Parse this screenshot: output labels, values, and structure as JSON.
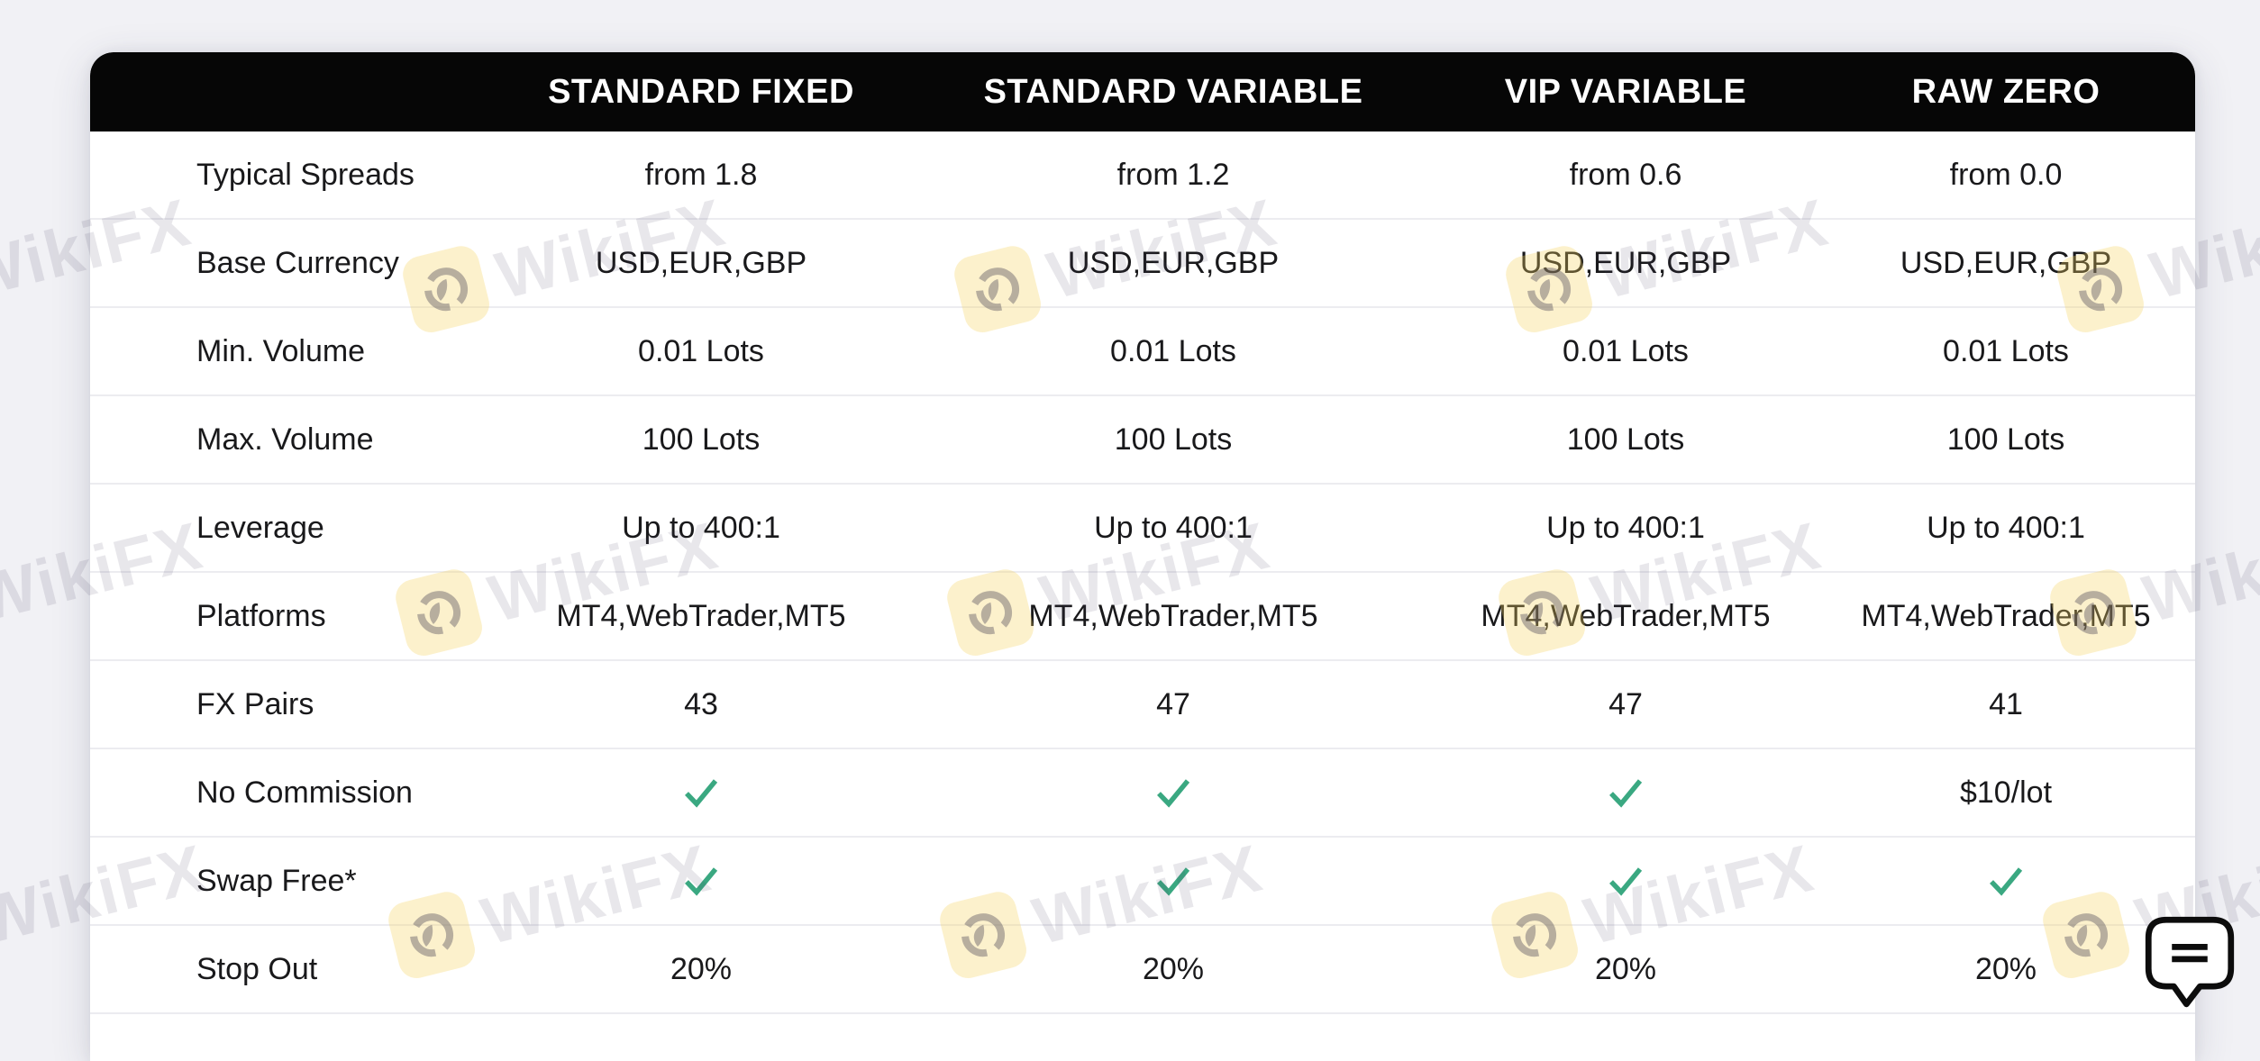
{
  "header": {
    "columns": [
      "STANDARD FIXED",
      "STANDARD VARIABLE",
      "VIP VARIABLE",
      "RAW ZERO"
    ]
  },
  "table": {
    "rows": [
      {
        "label": "Typical Spreads",
        "values": [
          "from 1.8",
          "from 1.2",
          "from 0.6",
          "from 0.0"
        ]
      },
      {
        "label": "Base Currency",
        "values": [
          "USD,EUR,GBP",
          "USD,EUR,GBP",
          "USD,EUR,GBP",
          "USD,EUR,GBP"
        ]
      },
      {
        "label": "Min. Volume",
        "values": [
          "0.01 Lots",
          "0.01 Lots",
          "0.01 Lots",
          "0.01 Lots"
        ]
      },
      {
        "label": "Max. Volume",
        "values": [
          "100 Lots",
          "100 Lots",
          "100 Lots",
          "100 Lots"
        ]
      },
      {
        "label": "Leverage",
        "values": [
          "Up to 400:1",
          "Up to 400:1",
          "Up to 400:1",
          "Up to 400:1"
        ]
      },
      {
        "label": "Platforms",
        "values": [
          "MT4,WebTrader,MT5",
          "MT4,WebTrader,MT5",
          "MT4,WebTrader,MT5",
          "MT4,WebTrader,MT5"
        ]
      },
      {
        "label": "FX Pairs",
        "values": [
          "43",
          "47",
          "47",
          "41"
        ]
      },
      {
        "label": "No Commission",
        "values": [
          "✓",
          "✓",
          "✓",
          "$10/lot"
        ]
      },
      {
        "label": "Swap Free*",
        "values": [
          "✓",
          "✓",
          "✓",
          "✓"
        ]
      },
      {
        "label": "Stop Out",
        "values": [
          "20%",
          "20%",
          "20%",
          "20%"
        ]
      }
    ]
  },
  "watermark": {
    "text": "WikiFX"
  },
  "colors": {
    "check_green": "#3aa881",
    "header_bg": "#060606",
    "card_bg": "#ffffff",
    "page_bg": "#f1f1f5",
    "watermark_yellow": "#f5d460",
    "separator": "#ececf0"
  },
  "icons": {
    "check": "checkmark-icon",
    "chat": "chat-bubble-icon",
    "watermark_logo": "wikifx-eagle-icon"
  }
}
